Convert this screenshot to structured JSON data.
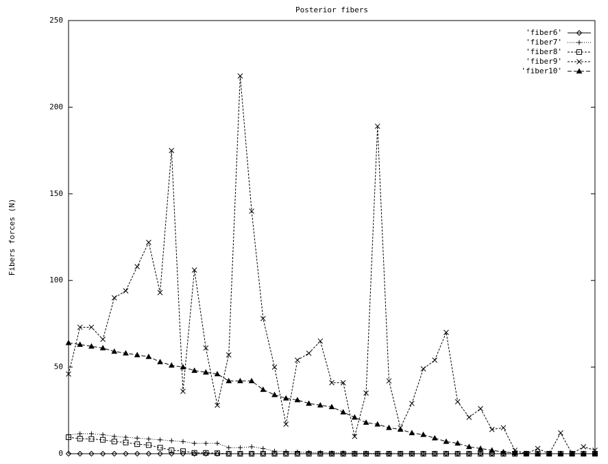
{
  "chart_data": {
    "type": "line",
    "title": "Posterior fibers",
    "y_label": "Fibers forces (N)",
    "x": [
      0,
      1,
      2,
      3,
      4,
      5,
      6,
      7,
      8,
      9,
      10,
      11,
      12,
      13,
      14,
      15,
      16,
      17,
      18,
      19,
      20,
      21,
      22,
      23,
      24,
      25,
      26,
      27,
      28,
      29,
      30,
      31,
      32,
      33,
      34,
      35,
      36,
      37,
      38,
      39,
      40,
      41,
      42,
      43,
      44,
      45,
      46
    ],
    "xlim": [
      0,
      46
    ],
    "ylim": [
      0,
      250
    ],
    "yticks": [
      0,
      50,
      100,
      150,
      200,
      250
    ],
    "legend": "top-right",
    "series": [
      {
        "name": "'fiber6'",
        "color": "#000000",
        "marker": "diamond",
        "dash": "solid",
        "values": [
          0,
          0,
          0,
          0,
          0,
          0,
          0,
          0,
          0,
          0,
          0,
          0,
          0,
          0,
          0,
          0,
          0,
          0,
          0,
          0,
          0,
          0,
          0,
          0,
          0,
          0,
          0,
          0,
          0,
          0,
          0,
          0,
          0,
          0,
          0,
          0,
          0,
          0,
          0,
          0,
          0,
          0,
          0,
          0,
          0,
          0,
          0
        ]
      },
      {
        "name": "'fiber7'",
        "color": "#000000",
        "marker": "plus",
        "dash": "dotted",
        "values": [
          11,
          11.5,
          11.5,
          11,
          10,
          9.5,
          9,
          8.5,
          8,
          7.5,
          7,
          6,
          6,
          6,
          3.5,
          3.5,
          4,
          3,
          1.5,
          1.2,
          1,
          0.7,
          0.7,
          0.5,
          0.5,
          0.3,
          0.3,
          0.2,
          0.2,
          0.1,
          0.1,
          0,
          0,
          0,
          0,
          0,
          0,
          0,
          0,
          0,
          0,
          0,
          0,
          0,
          0,
          0,
          0
        ]
      },
      {
        "name": "'fiber8'",
        "color": "#000000",
        "marker": "square",
        "dash": "dashed",
        "values": [
          9.5,
          8.7,
          8.5,
          8,
          7,
          6.5,
          5.5,
          5,
          3.5,
          2,
          1.5,
          0.5,
          0.5,
          0.3,
          0,
          0,
          0,
          0,
          0,
          0,
          0,
          0,
          0,
          0,
          0,
          0,
          0,
          0,
          0,
          0,
          0,
          0,
          0,
          0,
          0,
          0,
          0,
          0,
          0,
          0,
          0,
          0,
          0,
          0,
          0,
          0,
          0
        ]
      },
      {
        "name": "'fiber9'",
        "color": "#000000",
        "marker": "cross",
        "dash": "dashed",
        "values": [
          46,
          73,
          73,
          66,
          90,
          94,
          108,
          122,
          93,
          175,
          36,
          106,
          61,
          28,
          57,
          218,
          140,
          78,
          50,
          17,
          54,
          58,
          65,
          41,
          41,
          10,
          35,
          189,
          42,
          15,
          29,
          49,
          54,
          70,
          30,
          21,
          26,
          14,
          15,
          2,
          0,
          3,
          0,
          12,
          0,
          4,
          2
        ]
      },
      {
        "name": "'fiber10'",
        "color": "#000000",
        "marker": "triangle",
        "dash": "longdash",
        "values": [
          64,
          63,
          62,
          61,
          59,
          58,
          57,
          56,
          53,
          51,
          50,
          48,
          47,
          46,
          42,
          42,
          42,
          37,
          34,
          32,
          31,
          29,
          28,
          27,
          24,
          21,
          18,
          17,
          15,
          14,
          12,
          11,
          9,
          7,
          6,
          4,
          3,
          2,
          1,
          0.5,
          0,
          0,
          0,
          0,
          0,
          0,
          0
        ]
      }
    ]
  }
}
